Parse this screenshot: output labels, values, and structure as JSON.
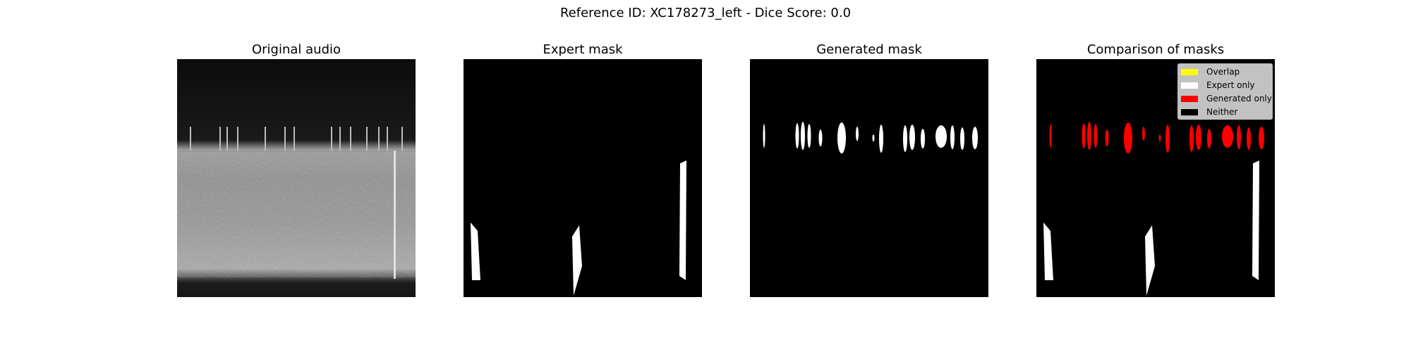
{
  "figure": {
    "title": "Reference ID: XC178273_left - Dice Score: 0.0"
  },
  "panels": [
    {
      "title": "Original audio"
    },
    {
      "title": "Expert mask"
    },
    {
      "title": "Generated mask"
    },
    {
      "title": "Comparison of masks"
    }
  ],
  "legend": {
    "items": [
      {
        "label": "Overlap",
        "color": "#ffff00"
      },
      {
        "label": "Expert only",
        "color": "#ffffff"
      },
      {
        "label": "Generated only",
        "color": "#ff0000"
      },
      {
        "label": "Neither",
        "color": "#000000"
      }
    ]
  },
  "colors": {
    "expert": "#ffffff",
    "generated": "#ff0000",
    "background": "#000000"
  }
}
